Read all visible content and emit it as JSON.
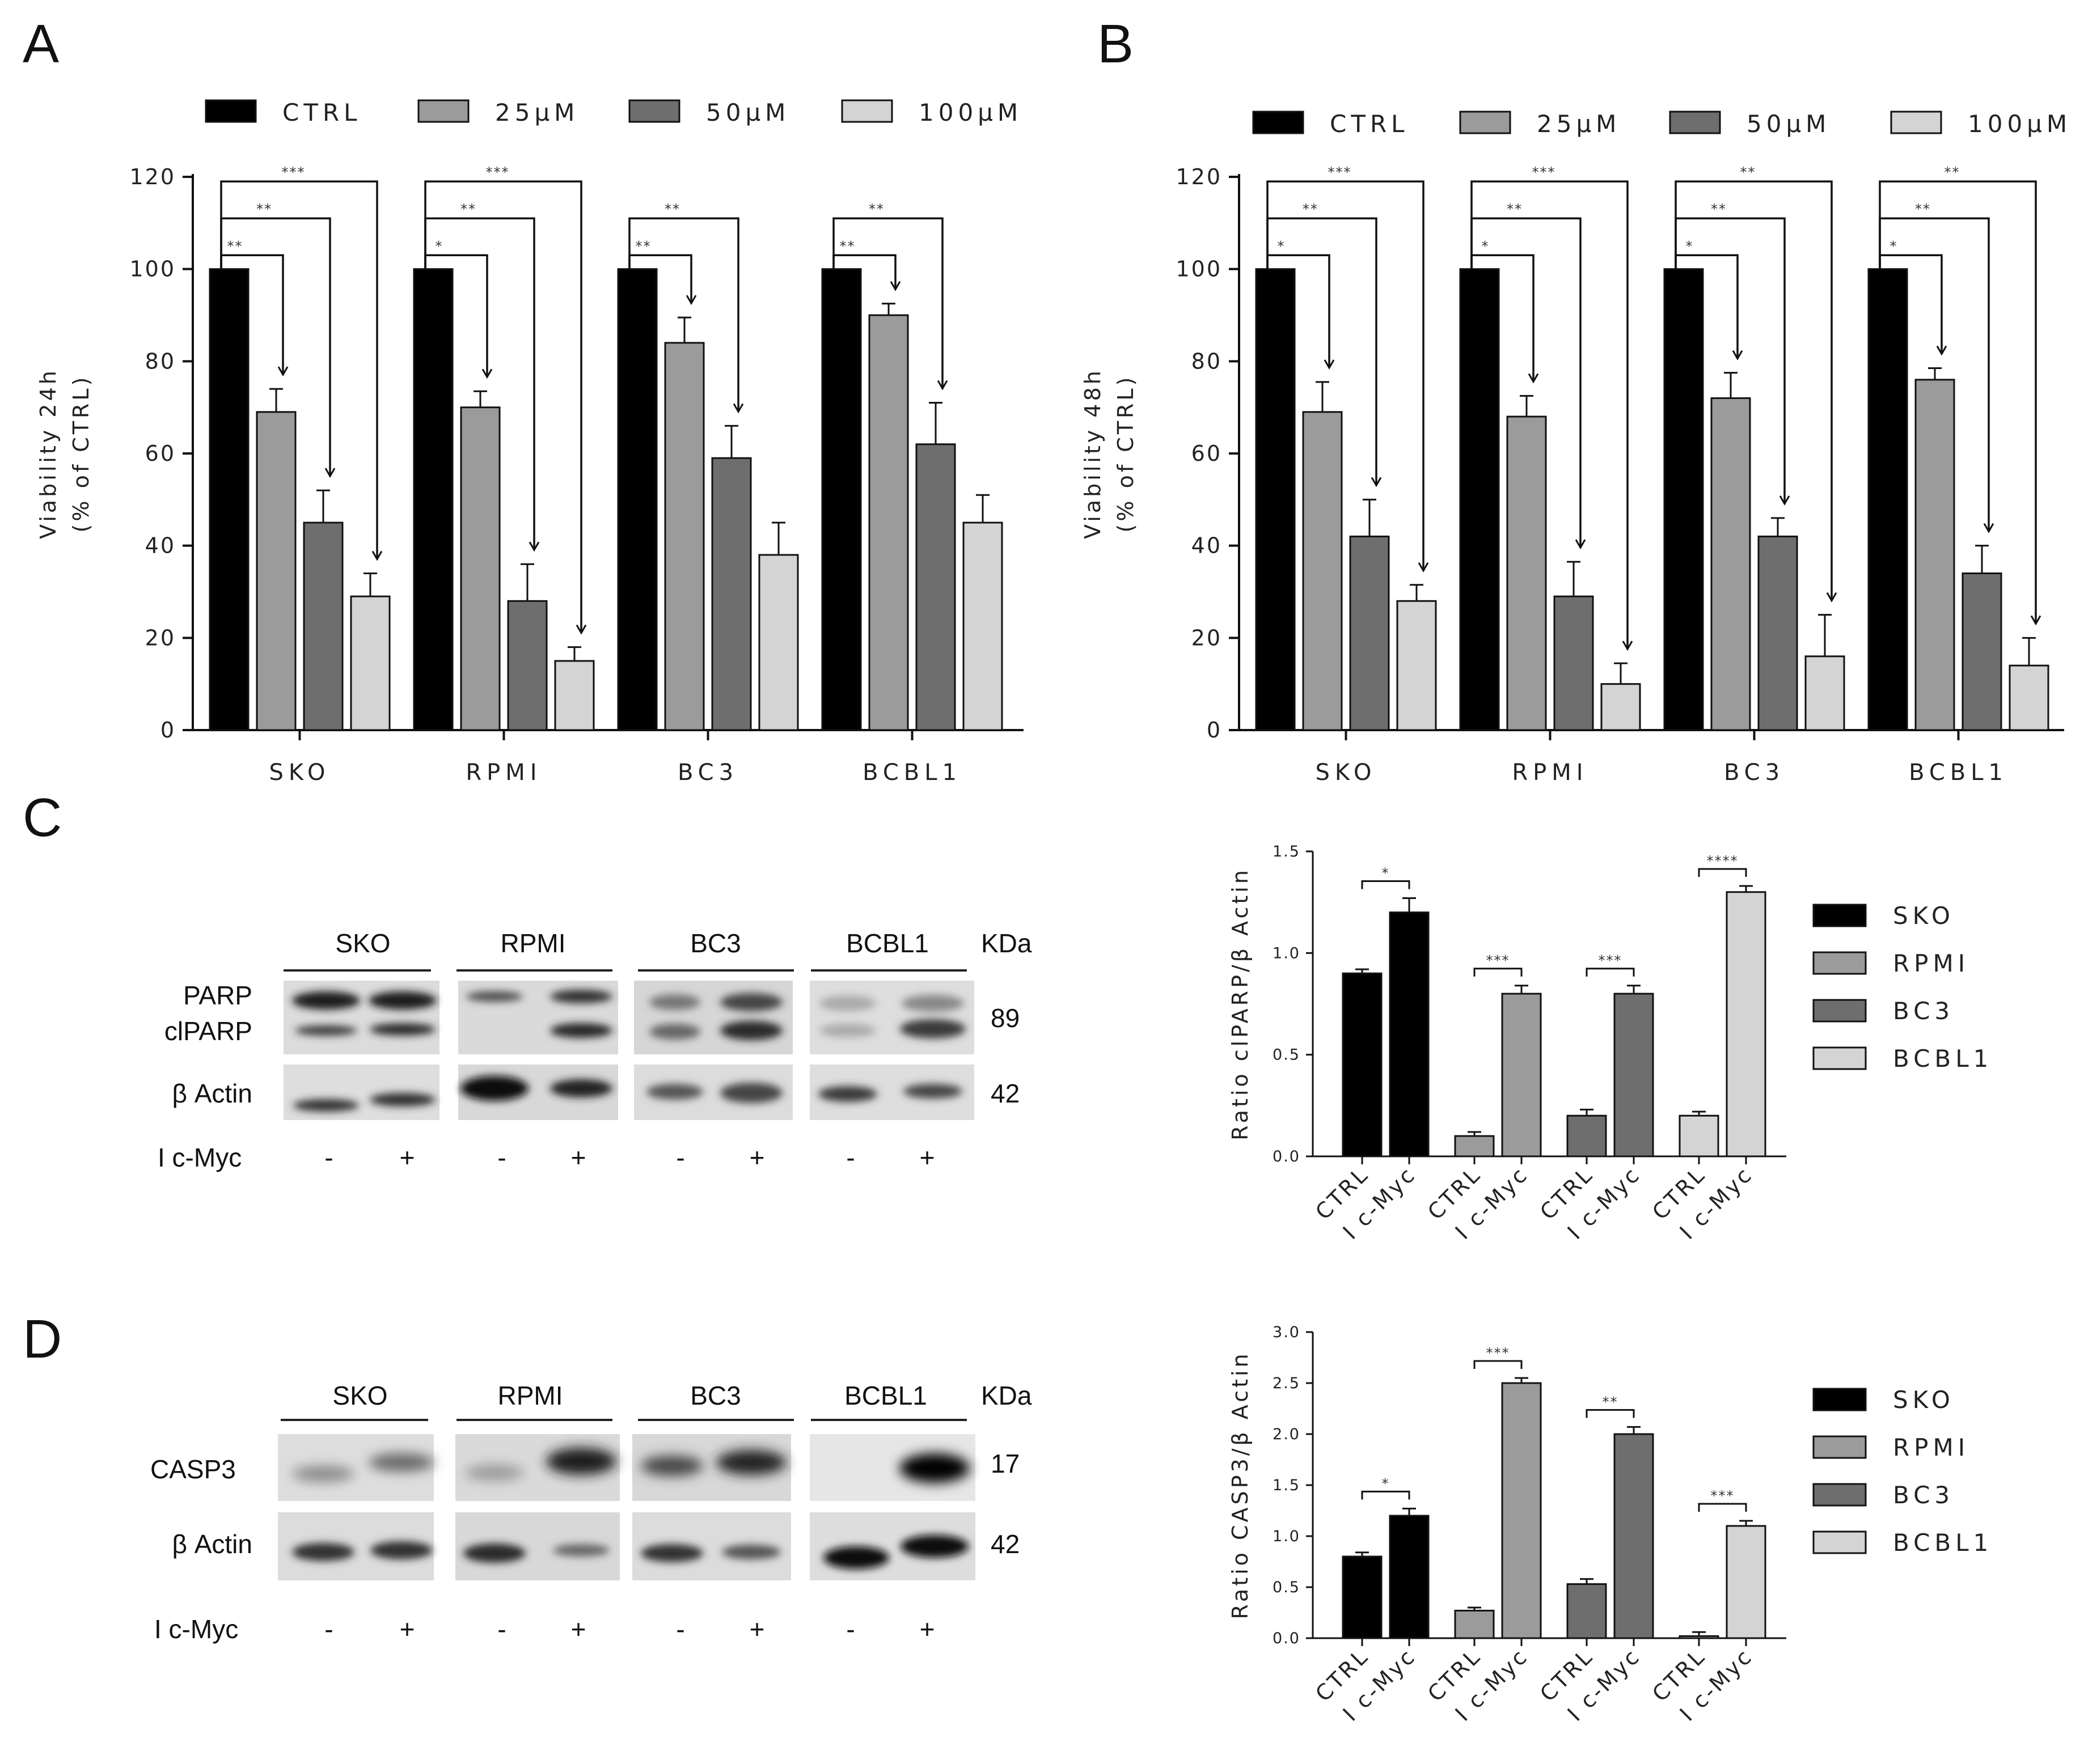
{
  "panels": {
    "A": "A",
    "B": "B",
    "C": "C",
    "D": "D"
  },
  "colors": {
    "CTRL": "#000000",
    "25uM": "#9b9b9b",
    "50uM": "#6e6e6e",
    "100uM": "#d4d4d4",
    "SKO": "#000000",
    "RPMI": "#9b9b9b",
    "BC3": "#6e6e6e",
    "BCBL1": "#d4d4d4"
  },
  "chart_data": [
    {
      "id": "A",
      "type": "bar",
      "title": "",
      "ylabel_line1": "Viability 24h",
      "ylabel_line2": "(% of CTRL)",
      "xlabel": "",
      "ylim": [
        0,
        120
      ],
      "yticks": [
        "0",
        "20",
        "40",
        "60",
        "80",
        "100",
        "120"
      ],
      "categories": [
        "SKO",
        "RPMI",
        "BC3",
        "BCBL1"
      ],
      "series": [
        {
          "name": "CTRL",
          "values": [
            100,
            100,
            100,
            100
          ],
          "errors": [
            0,
            0,
            0,
            0
          ]
        },
        {
          "name": "25μM",
          "values": [
            69,
            70,
            84,
            90
          ],
          "errors": [
            5,
            3.5,
            5.5,
            2.5
          ]
        },
        {
          "name": "50μM",
          "values": [
            45,
            28,
            59,
            62
          ],
          "errors": [
            7,
            8,
            7,
            9
          ]
        },
        {
          "name": "100μM",
          "values": [
            29,
            15,
            38,
            45
          ],
          "errors": [
            5,
            3,
            7,
            6
          ]
        }
      ],
      "significance": [
        [
          [
            "**",
            "**",
            "***"
          ],
          [
            "*",
            "**",
            "***"
          ],
          [
            "**",
            "**"
          ],
          [
            "**",
            "**"
          ]
        ]
      ]
    },
    {
      "id": "B",
      "type": "bar",
      "title": "",
      "ylabel_line1": "Viability 48h",
      "ylabel_line2": "(% of CTRL)",
      "xlabel": "",
      "ylim": [
        0,
        120
      ],
      "yticks": [
        "0",
        "20",
        "40",
        "60",
        "80",
        "100",
        "120"
      ],
      "categories": [
        "SKO",
        "RPMI",
        "BC3",
        "BCBL1"
      ],
      "series": [
        {
          "name": "CTRL",
          "values": [
            100,
            100,
            100,
            100
          ],
          "errors": [
            0,
            0,
            0,
            0
          ]
        },
        {
          "name": "25μM",
          "values": [
            69,
            68,
            72,
            76
          ],
          "errors": [
            6.5,
            4.5,
            5.5,
            2.5
          ]
        },
        {
          "name": "50μM",
          "values": [
            42,
            29,
            42,
            34
          ],
          "errors": [
            8,
            7.5,
            4,
            6
          ]
        },
        {
          "name": "100μM",
          "values": [
            28,
            10,
            16,
            14
          ],
          "errors": [
            3.5,
            4.5,
            9,
            6
          ]
        }
      ],
      "significance": [
        [
          [
            "*",
            "**",
            "***"
          ],
          [
            "*",
            "**",
            "***"
          ],
          [
            "*",
            "**",
            "**"
          ],
          [
            "*",
            "**",
            "**"
          ]
        ]
      ]
    },
    {
      "id": "C",
      "type": "bar",
      "ylabel": "Ratio clPARP/β Actin",
      "ylim": [
        0,
        1.5
      ],
      "yticks": [
        "0.0",
        "0.5",
        "1.0",
        "1.5"
      ],
      "groups": [
        "SKO",
        "RPMI",
        "BC3",
        "BCBL1"
      ],
      "xticklabels": [
        "CTRL",
        "I c-Myc"
      ],
      "values": [
        [
          0.9,
          1.2
        ],
        [
          0.1,
          0.8
        ],
        [
          0.2,
          0.8
        ],
        [
          0.2,
          1.3
        ]
      ],
      "errors": [
        [
          0.02,
          0.07
        ],
        [
          0.02,
          0.04
        ],
        [
          0.03,
          0.04
        ],
        [
          0.02,
          0.03
        ]
      ],
      "significance": [
        "*",
        "***",
        "***",
        "****"
      ],
      "legend": [
        "SKO",
        "RPMI",
        "BC3",
        "BCBL1"
      ]
    },
    {
      "id": "D",
      "type": "bar",
      "ylabel": "Ratio CASP3/β Actin",
      "ylim": [
        0,
        3.0
      ],
      "yticks": [
        "0.0",
        "0.5",
        "1.0",
        "1.5",
        "2.0",
        "2.5",
        "3.0"
      ],
      "groups": [
        "SKO",
        "RPMI",
        "BC3",
        "BCBL1"
      ],
      "xticklabels": [
        "CTRL",
        "I c-Myc"
      ],
      "values": [
        [
          0.8,
          1.2
        ],
        [
          0.27,
          2.5
        ],
        [
          0.53,
          2.0
        ],
        [
          0.02,
          1.1
        ]
      ],
      "errors": [
        [
          0.04,
          0.07
        ],
        [
          0.03,
          0.05
        ],
        [
          0.05,
          0.07
        ],
        [
          0.04,
          0.05
        ]
      ],
      "significance": [
        "*",
        "***",
        "**",
        "***"
      ],
      "legend": [
        "SKO",
        "RPMI",
        "BC3",
        "BCBL1"
      ]
    }
  ],
  "blots": {
    "C": {
      "headers": [
        "SKO",
        "RPMI",
        "BC3",
        "BCBL1"
      ],
      "kda_header": "KDa",
      "row1_labels": [
        "PARP",
        "clPARP"
      ],
      "row1_kda": "89",
      "row2_label": "β Actin",
      "row2_kda": "42",
      "treatment_label": "I c-Myc",
      "signs": [
        "-",
        "+",
        "-",
        "+",
        "-",
        "+",
        "-",
        "+"
      ]
    },
    "D": {
      "headers": [
        "SKO",
        "RPMI",
        "BC3",
        "BCBL1"
      ],
      "kda_header": "KDa",
      "row1_label": "CASP3",
      "row1_kda": "17",
      "row2_label": "β Actin",
      "row2_kda": "42",
      "treatment_label": "I c-Myc",
      "signs": [
        "-",
        "+",
        "-",
        "+",
        "-",
        "+",
        "-",
        "+"
      ]
    }
  }
}
